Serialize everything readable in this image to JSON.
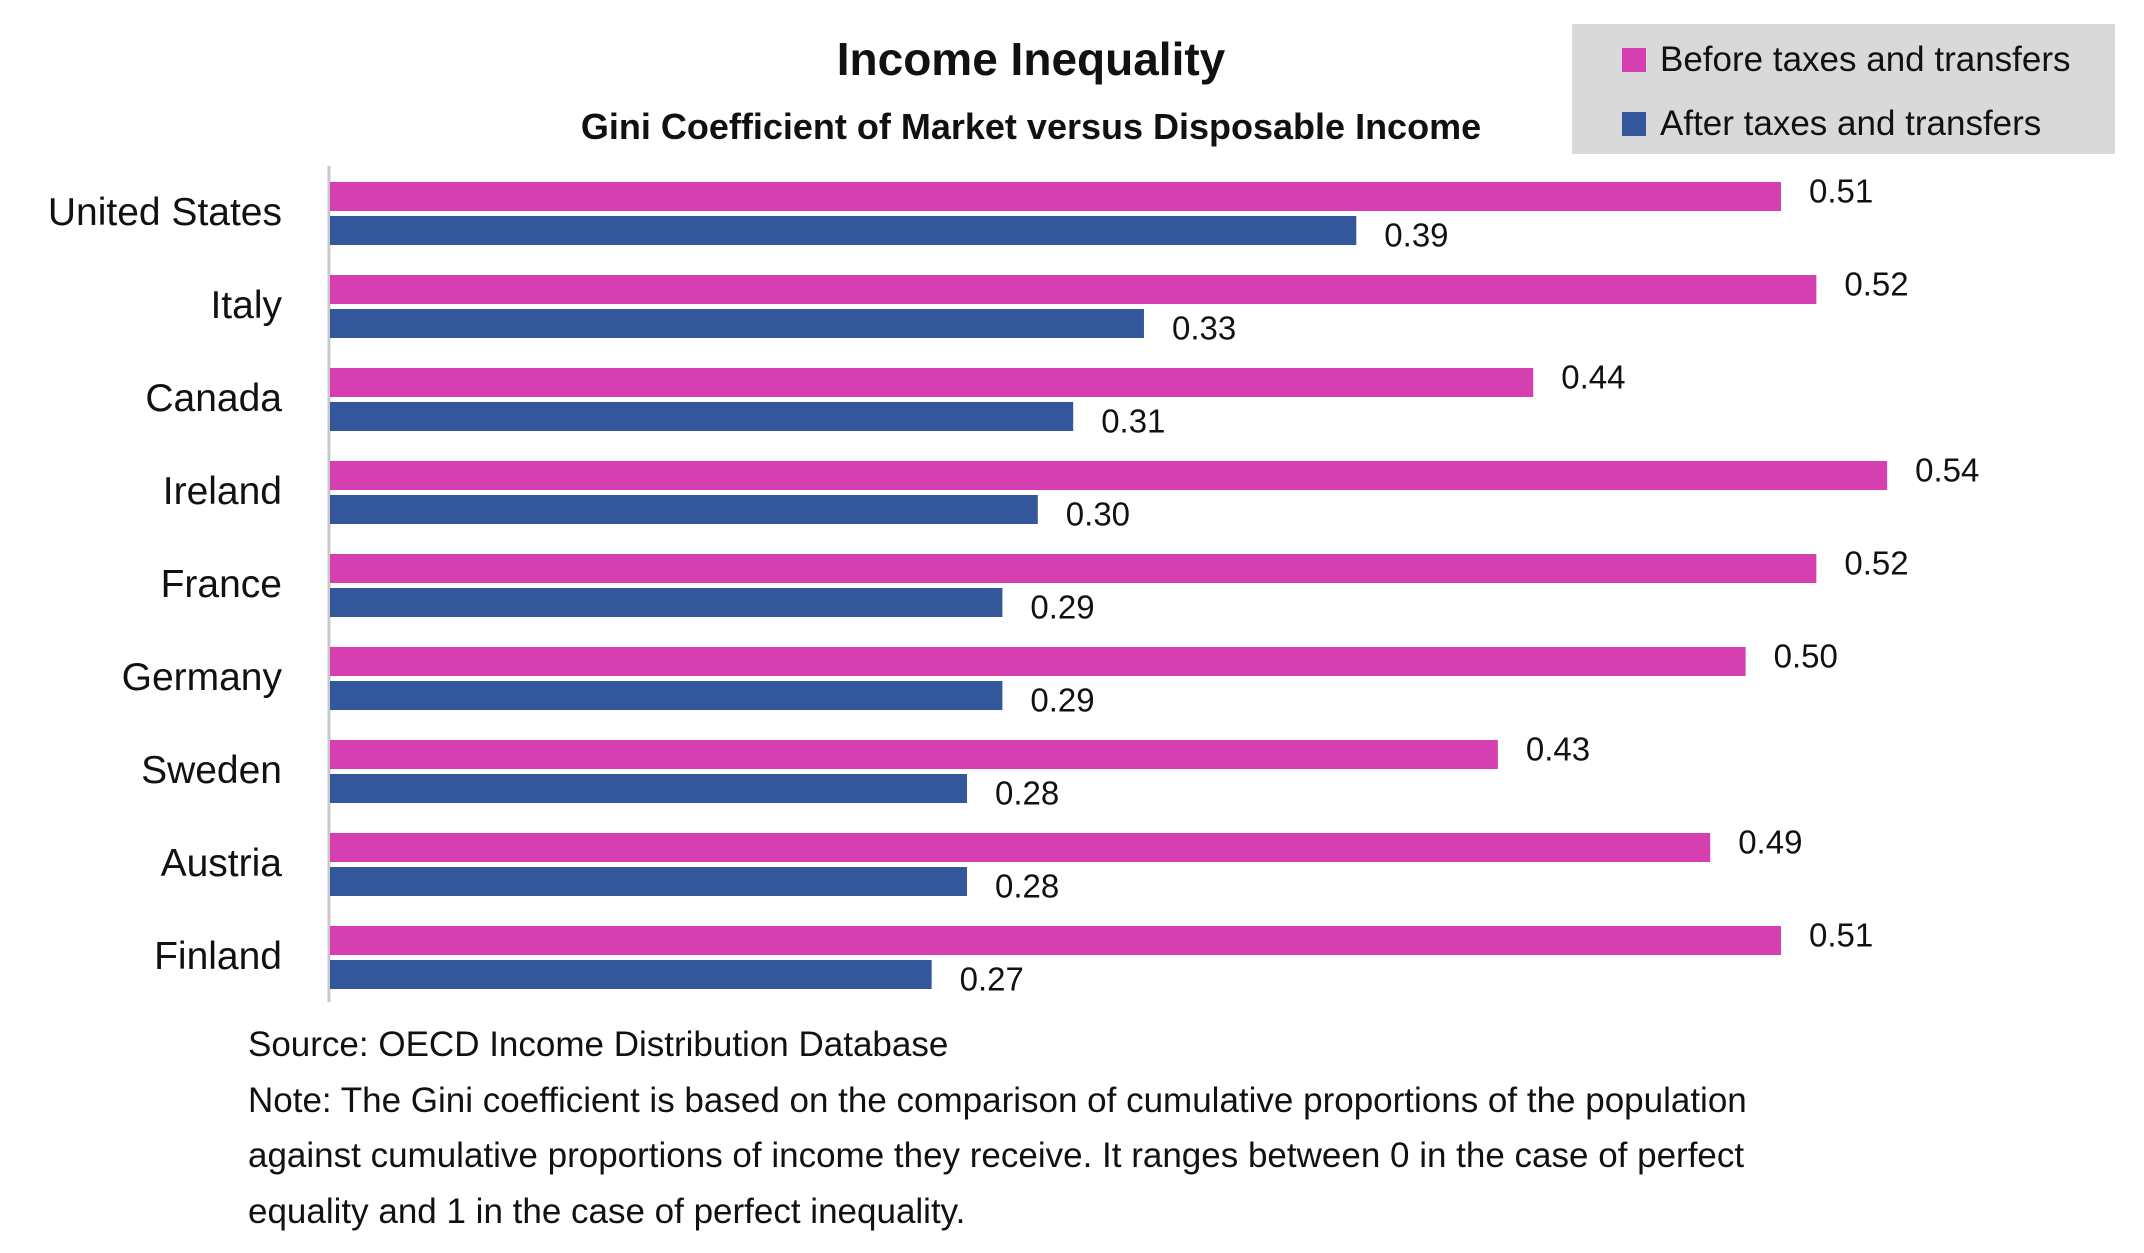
{
  "chart_data": {
    "type": "bar",
    "orientation": "horizontal",
    "title": "Income Inequality",
    "subtitle": "Gini Coefficient of Market versus Disposable Income",
    "categories": [
      "United States",
      "Italy",
      "Canada",
      "Ireland",
      "France",
      "Germany",
      "Sweden",
      "Austria",
      "Finland"
    ],
    "series": [
      {
        "name": "Before taxes and transfers",
        "color": "#D63FAF",
        "values": [
          0.51,
          0.52,
          0.44,
          0.54,
          0.52,
          0.5,
          0.43,
          0.49,
          0.51
        ]
      },
      {
        "name": "After taxes and transfers",
        "color": "#34579C",
        "values": [
          0.39,
          0.33,
          0.31,
          0.3,
          0.29,
          0.29,
          0.28,
          0.28,
          0.27
        ]
      }
    ],
    "value_labels": [
      [
        "0.51",
        "0.52",
        "0.44",
        "0.54",
        "0.52",
        "0.50",
        "0.43",
        "0.49",
        "0.51"
      ],
      [
        "0.39",
        "0.33",
        "0.31",
        "0.30",
        "0.29",
        "0.29",
        "0.28",
        "0.28",
        "0.27"
      ]
    ],
    "xlim": [
      0.1,
      0.6
    ],
    "grid": false,
    "x_axis_visible": false,
    "legend_position": "top-right",
    "legend_background": "#D9D9D9"
  },
  "footer": {
    "source": "Source: OECD Income Distribution Database",
    "note_lines": [
      "Note: The Gini coefficient is based on the comparison of cumulative proportions of the population",
      "against cumulative proportions of income they receive. It ranges between 0 in the case of perfect",
      "equality and 1 in the case of perfect inequality."
    ]
  }
}
